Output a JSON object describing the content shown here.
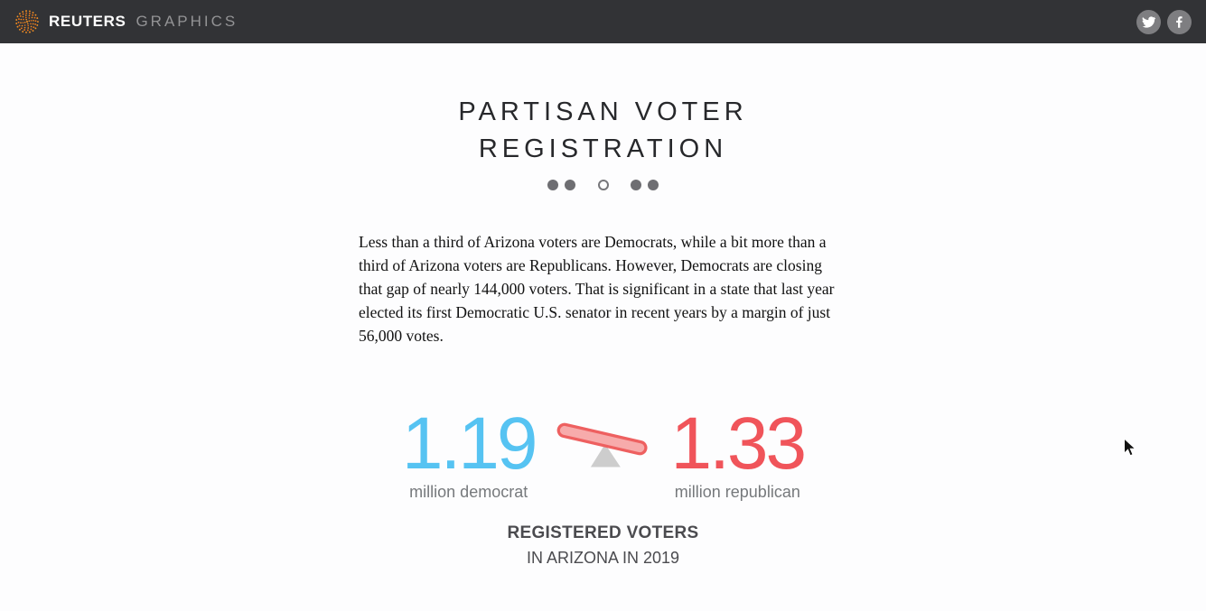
{
  "header": {
    "brand": "REUTERS",
    "brand_suffix": "GRAPHICS",
    "logo_icon": "reuters-dotted-sphere-logo",
    "social": {
      "twitter_icon": "twitter-bird",
      "facebook_icon": "facebook-f"
    }
  },
  "carousel": {
    "title_line1": "PARTISAN VOTER",
    "title_line2": "REGISTRATION",
    "dots": [
      "filled",
      "filled",
      "hollow",
      "filled",
      "filled"
    ],
    "active_dot_index": 2
  },
  "article": {
    "body": "Less than a third of Arizona voters are Democrats, while a bit more than a third of Arizona voters are Republicans. However, Democrats are closing that gap of nearly 144,000 voters. That is significant in a state that last year elected its first Democratic U.S. senator in recent years by a margin of just 56,000 votes."
  },
  "stats": {
    "democrat": {
      "value": "1.19",
      "label": "million democrat"
    },
    "republican": {
      "value": "1.33",
      "label": "million republican"
    },
    "caption_line1": "REGISTERED VOTERS",
    "caption_line2": "IN ARIZONA IN 2019",
    "seesaw_icon": "tilted-seesaw-scale"
  },
  "chart_data": {
    "type": "pictogram",
    "title": "REGISTERED VOTERS IN ARIZONA IN 2019",
    "categories": [
      "million democrat",
      "million republican"
    ],
    "values": [
      1.19,
      1.33
    ],
    "unit": "millions of registered voters",
    "colors": [
      "#56c3f2",
      "#f0545a"
    ],
    "annotations": [
      "seesaw tipped toward republican side"
    ]
  },
  "colors": {
    "header_bg": "#323336",
    "logo_orange": "#f08019",
    "democrat_blue": "#56c3f2",
    "republican_red": "#f0545a",
    "seesaw_plank_fill": "#f7abab",
    "seesaw_plank_stroke": "#ee6060",
    "seesaw_fulcrum": "#cdcdcd",
    "dot_gray": "#6e6e72",
    "label_gray": "#76797c"
  }
}
